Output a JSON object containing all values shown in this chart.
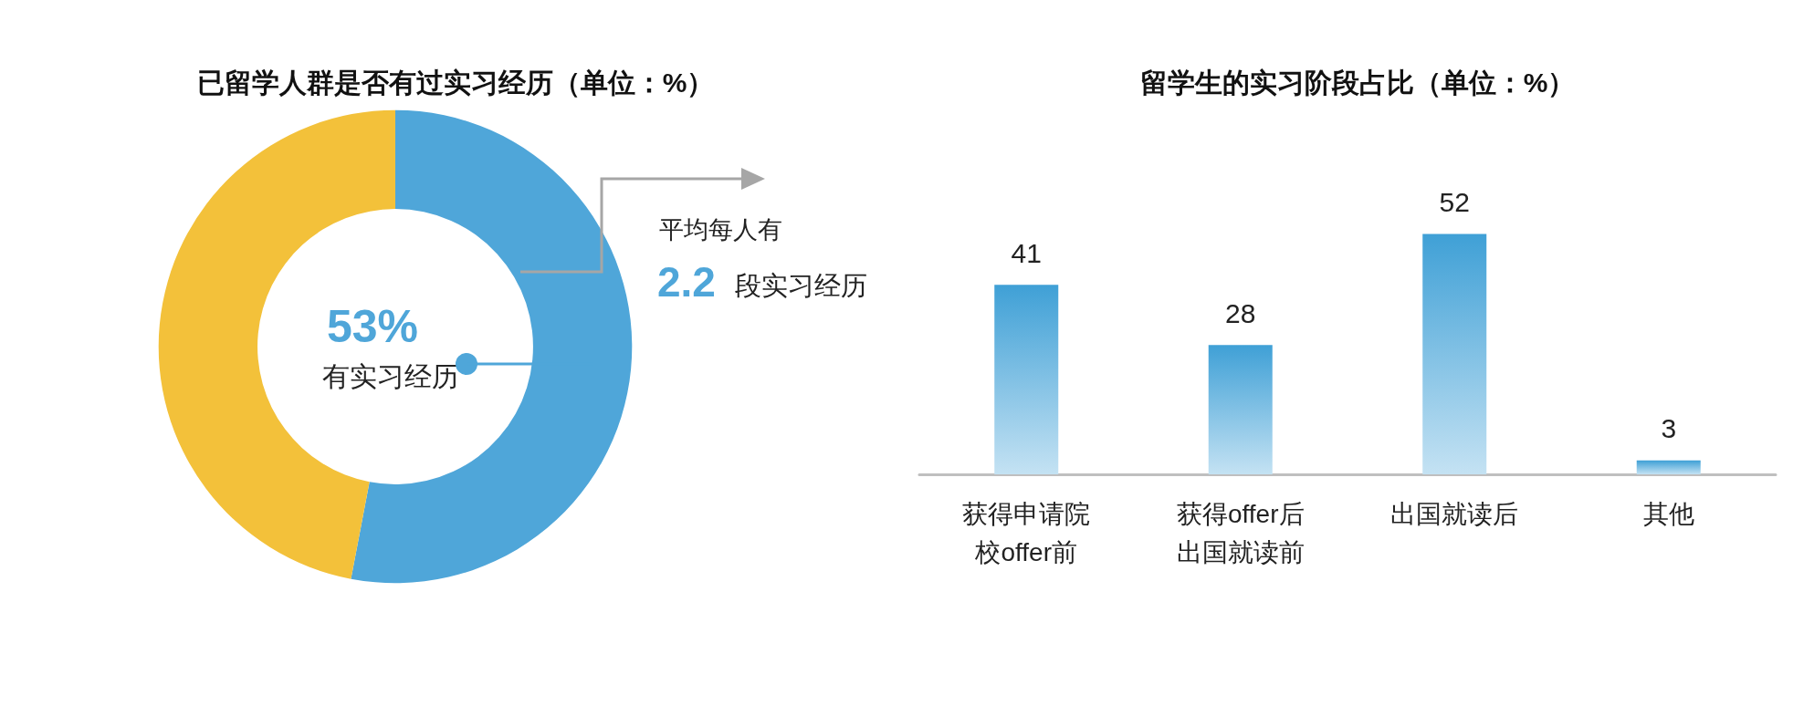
{
  "chart_data": [
    {
      "type": "donut",
      "title": "已留学人群是否有过实习经历（单位：%）",
      "categories": [
        "有实习经历",
        null
      ],
      "values": [
        53,
        47
      ],
      "colors": [
        "#4fa6d9",
        "#f3c13a"
      ],
      "value_labels": [
        "53%",
        null
      ],
      "annotations": [
        "平均每人有",
        "2.2",
        "段实习经历"
      ]
    },
    {
      "type": "bar",
      "title": "留学生的实习阶段占比（单位：%）",
      "categories": [
        "获得申请院校offer前",
        "获得offer后出国就读前",
        "出国就读后",
        "其他"
      ],
      "values": [
        41,
        28,
        52,
        3
      ],
      "color": "#3fa0d6",
      "data_labels": true
    }
  ]
}
